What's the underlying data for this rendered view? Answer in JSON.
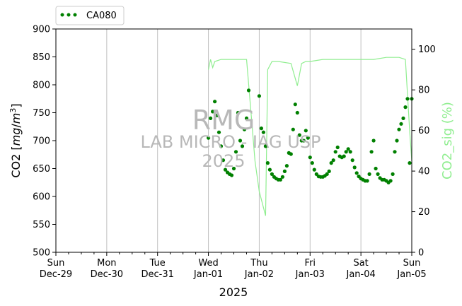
{
  "chart_data": {
    "type": "scatter",
    "xlabel": "2025",
    "ylabel": "CO2 [mg/m³]",
    "ylabel_right": "CO2_sig (%)",
    "ylim": [
      500,
      900
    ],
    "y_right_lim": [
      0,
      110
    ],
    "y_ticks": [
      "500",
      "550",
      "600",
      "650",
      "700",
      "750",
      "800",
      "850",
      "900"
    ],
    "y_right_ticks": [
      "0",
      "20",
      "40",
      "60",
      "80",
      "100"
    ],
    "x_tick_labels": [
      {
        "day": "Sun",
        "date": "Dec-29"
      },
      {
        "day": "Mon",
        "date": "Dec-30"
      },
      {
        "day": "Tue",
        "date": "Dec-31"
      },
      {
        "day": "Wed",
        "date": "Jan-01"
      },
      {
        "day": "Thu",
        "date": "Jan-02"
      },
      {
        "day": "Fri",
        "date": "Jan-03"
      },
      {
        "day": "Sat",
        "date": "Jan-04"
      },
      {
        "day": "Sun",
        "date": "Jan-05"
      }
    ],
    "xlim": [
      "2024-12-29 00:00",
      "2025-01-05 00:00"
    ],
    "grid": "vertical, daily",
    "legend_position": "top-left, outside plot",
    "watermark": {
      "line1": "RMG",
      "line2": "LAB MICRO - IAG USP",
      "line3": "2025"
    },
    "colors": {
      "co2": "#008000",
      "sig": "#90ee90",
      "grid": "#c0c0c0"
    },
    "series": [
      {
        "name": "CA080",
        "axis": "left",
        "style": "points",
        "x": [
          "2025-01-01 00:00",
          "2025-01-01 01:00",
          "2025-01-01 02:00",
          "2025-01-01 03:00",
          "2025-01-01 04:00",
          "2025-01-01 05:00",
          "2025-01-01 06:00",
          "2025-01-01 07:00",
          "2025-01-01 08:00",
          "2025-01-01 09:00",
          "2025-01-01 10:00",
          "2025-01-01 11:00",
          "2025-01-01 12:00",
          "2025-01-01 13:00",
          "2025-01-01 14:00",
          "2025-01-01 15:00",
          "2025-01-01 16:00",
          "2025-01-01 17:00",
          "2025-01-01 18:00",
          "2025-01-01 19:00",
          "2025-01-02 00:00",
          "2025-01-02 01:00",
          "2025-01-02 02:00",
          "2025-01-02 03:00",
          "2025-01-02 04:00",
          "2025-01-02 05:00",
          "2025-01-02 06:00",
          "2025-01-02 07:00",
          "2025-01-02 08:00",
          "2025-01-02 09:00",
          "2025-01-02 10:00",
          "2025-01-02 11:00",
          "2025-01-02 12:00",
          "2025-01-02 13:00",
          "2025-01-02 14:00",
          "2025-01-02 15:00",
          "2025-01-02 16:00",
          "2025-01-02 17:00",
          "2025-01-02 18:00",
          "2025-01-02 19:00",
          "2025-01-02 20:00",
          "2025-01-02 21:00",
          "2025-01-02 22:00",
          "2025-01-02 23:00",
          "2025-01-03 00:00",
          "2025-01-03 01:00",
          "2025-01-03 02:00",
          "2025-01-03 03:00",
          "2025-01-03 04:00",
          "2025-01-03 05:00",
          "2025-01-03 06:00",
          "2025-01-03 07:00",
          "2025-01-03 08:00",
          "2025-01-03 09:00",
          "2025-01-03 10:00",
          "2025-01-03 11:00",
          "2025-01-03 12:00",
          "2025-01-03 13:00",
          "2025-01-03 14:00",
          "2025-01-03 15:00",
          "2025-01-03 16:00",
          "2025-01-03 17:00",
          "2025-01-03 18:00",
          "2025-01-03 19:00",
          "2025-01-03 20:00",
          "2025-01-03 21:00",
          "2025-01-03 22:00",
          "2025-01-03 23:00",
          "2025-01-04 00:00",
          "2025-01-04 01:00",
          "2025-01-04 02:00",
          "2025-01-04 03:00",
          "2025-01-04 04:00",
          "2025-01-04 05:00",
          "2025-01-04 06:00",
          "2025-01-04 07:00",
          "2025-01-04 08:00",
          "2025-01-04 09:00",
          "2025-01-04 10:00",
          "2025-01-04 11:00",
          "2025-01-04 12:00",
          "2025-01-04 13:00",
          "2025-01-04 14:00",
          "2025-01-04 15:00",
          "2025-01-04 16:00",
          "2025-01-04 17:00",
          "2025-01-04 18:00",
          "2025-01-04 19:00",
          "2025-01-04 20:00",
          "2025-01-04 21:00",
          "2025-01-04 22:00",
          "2025-01-04 23:00",
          "2025-01-05 00:00"
        ],
        "values": [
          705,
          740,
          752,
          770,
          745,
          715,
          690,
          665,
          648,
          643,
          640,
          638,
          650,
          680,
          750,
          700,
          690,
          720,
          740,
          790,
          780,
          722,
          715,
          690,
          660,
          648,
          640,
          635,
          632,
          630,
          630,
          635,
          645,
          655,
          678,
          676,
          720,
          765,
          750,
          710,
          700,
          700,
          718,
          705,
          670,
          660,
          648,
          640,
          636,
          635,
          635,
          637,
          640,
          645,
          660,
          665,
          680,
          688,
          672,
          670,
          672,
          680,
          685,
          680,
          665,
          652,
          642,
          636,
          632,
          630,
          628,
          628,
          640,
          680,
          700,
          650,
          640,
          633,
          630,
          630,
          628,
          625,
          628,
          640,
          680,
          700,
          720,
          730,
          740,
          760,
          775,
          660,
          775
        ]
      },
      {
        "name": "CO2_sig",
        "axis": "right",
        "style": "line",
        "x": [
          "2025-01-01 00:00",
          "2025-01-01 01:00",
          "2025-01-01 02:00",
          "2025-01-01 03:00",
          "2025-01-01 06:00",
          "2025-01-01 12:00",
          "2025-01-01 18:00",
          "2025-01-01 20:00",
          "2025-01-01 22:00",
          "2025-01-02 00:00",
          "2025-01-02 01:00",
          "2025-01-02 02:00",
          "2025-01-02 03:00",
          "2025-01-02 04:00",
          "2025-01-02 06:00",
          "2025-01-02 09:00",
          "2025-01-02 15:00",
          "2025-01-02 18:00",
          "2025-01-02 20:00",
          "2025-01-02 22:00",
          "2025-01-03 00:00",
          "2025-01-03 06:00",
          "2025-01-03 12:00",
          "2025-01-03 18:00",
          "2025-01-04 00:00",
          "2025-01-04 06:00",
          "2025-01-04 12:00",
          "2025-01-04 18:00",
          "2025-01-04 21:00",
          "2025-01-04 23:00",
          "2025-01-05 00:00"
        ],
        "values": [
          90,
          95,
          91,
          94,
          95,
          95,
          95,
          70,
          45,
          30,
          26,
          22,
          18,
          90,
          94,
          94,
          93,
          82,
          93,
          94,
          94,
          95,
          95,
          95,
          95,
          95,
          96,
          96,
          95,
          60,
          45
        ]
      }
    ]
  }
}
